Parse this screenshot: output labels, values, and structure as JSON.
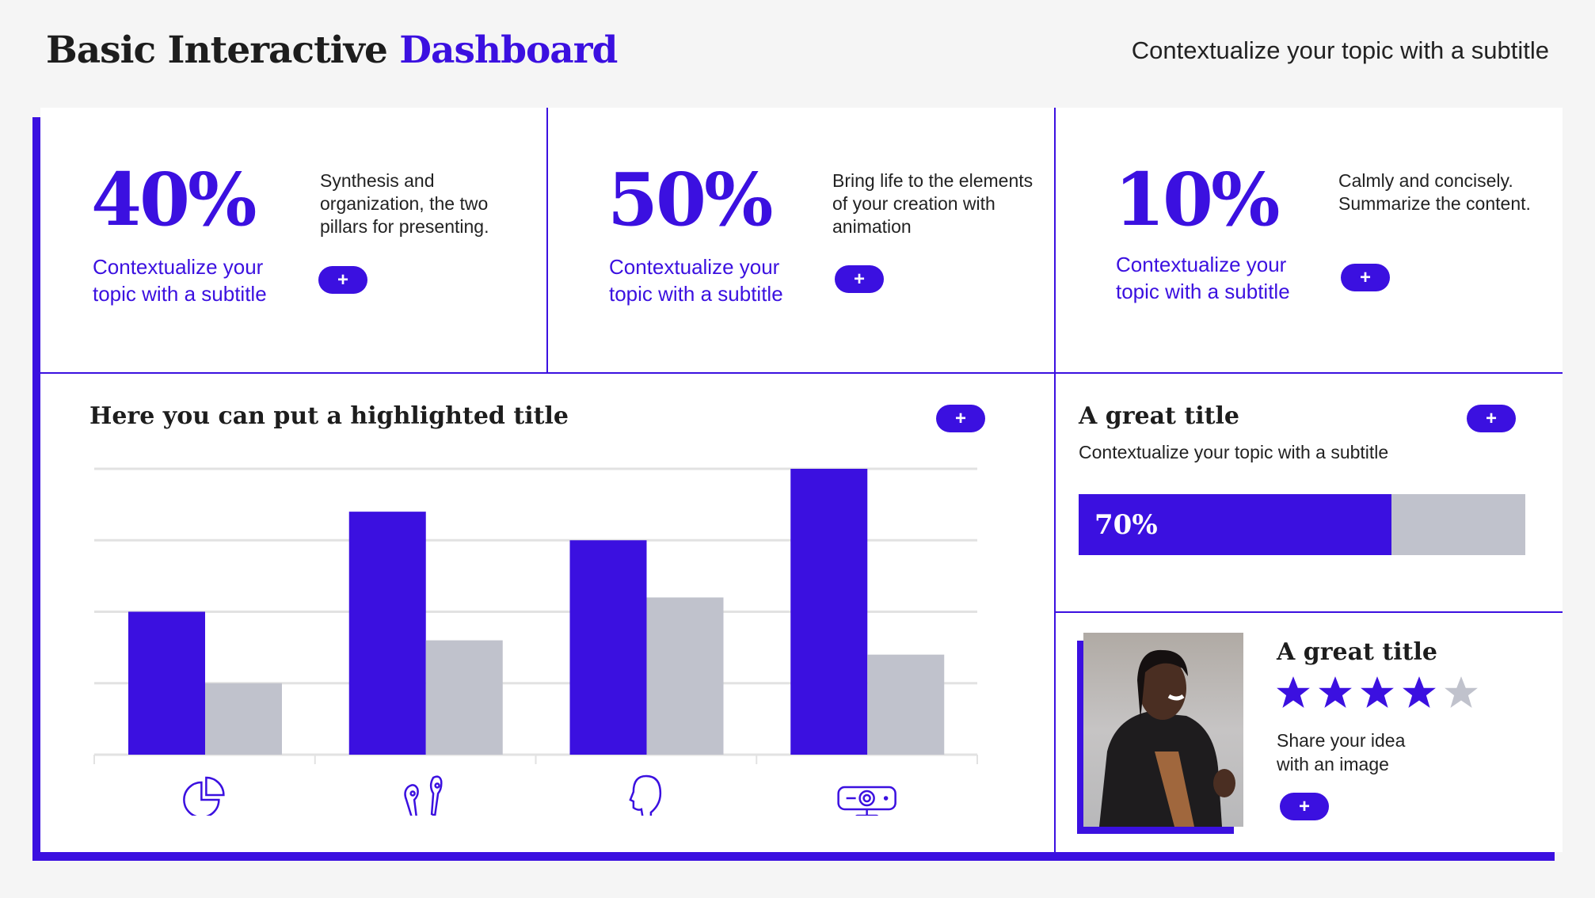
{
  "header": {
    "title_part1": "Basic Interactive",
    "title_part2": "Dashboard",
    "subtitle": "Contextualize your topic with a subtitle"
  },
  "kpis": [
    {
      "value": "40%",
      "subtitle": "Contextualize your topic with a subtitle",
      "description": "Synthesis and organization, the two pillars for presenting.",
      "button": "+"
    },
    {
      "value": "50%",
      "subtitle": "Contextualize your topic with a subtitle",
      "description": "Bring life to the elements of your creation with animation",
      "button": "+"
    },
    {
      "value": "10%",
      "subtitle": "Contextualize your topic with a subtitle",
      "description": "Calmly and concisely. Summarize the content.",
      "button": "+"
    }
  ],
  "chart_panel": {
    "title": "Here you can put a highlighted title",
    "button": "+"
  },
  "chart_data": {
    "type": "bar",
    "categories": [
      "pie-chart-icon",
      "earbuds-icon",
      "head-icon",
      "projector-icon"
    ],
    "series": [
      {
        "values": [
          2.0,
          3.4,
          3.0,
          4.0
        ],
        "color": "#3b10e0"
      },
      {
        "values": [
          1.0,
          1.6,
          2.2,
          1.4
        ],
        "color": "#c0c2cc"
      }
    ],
    "ylim": [
      0,
      4
    ],
    "grid": true,
    "title": "",
    "xlabel": "",
    "ylabel": ""
  },
  "progress_panel": {
    "title": "A great title",
    "subtitle": "Contextualize your topic with a subtitle",
    "button": "+",
    "progress": 70,
    "progress_label": "70%"
  },
  "image_panel": {
    "title": "A great title",
    "rating": 4,
    "rating_max": 5,
    "text": "Share your idea with an image",
    "button": "+"
  },
  "colors": {
    "accent": "#3b10e0",
    "muted": "#c0c2cc",
    "background": "#f5f5f5"
  }
}
